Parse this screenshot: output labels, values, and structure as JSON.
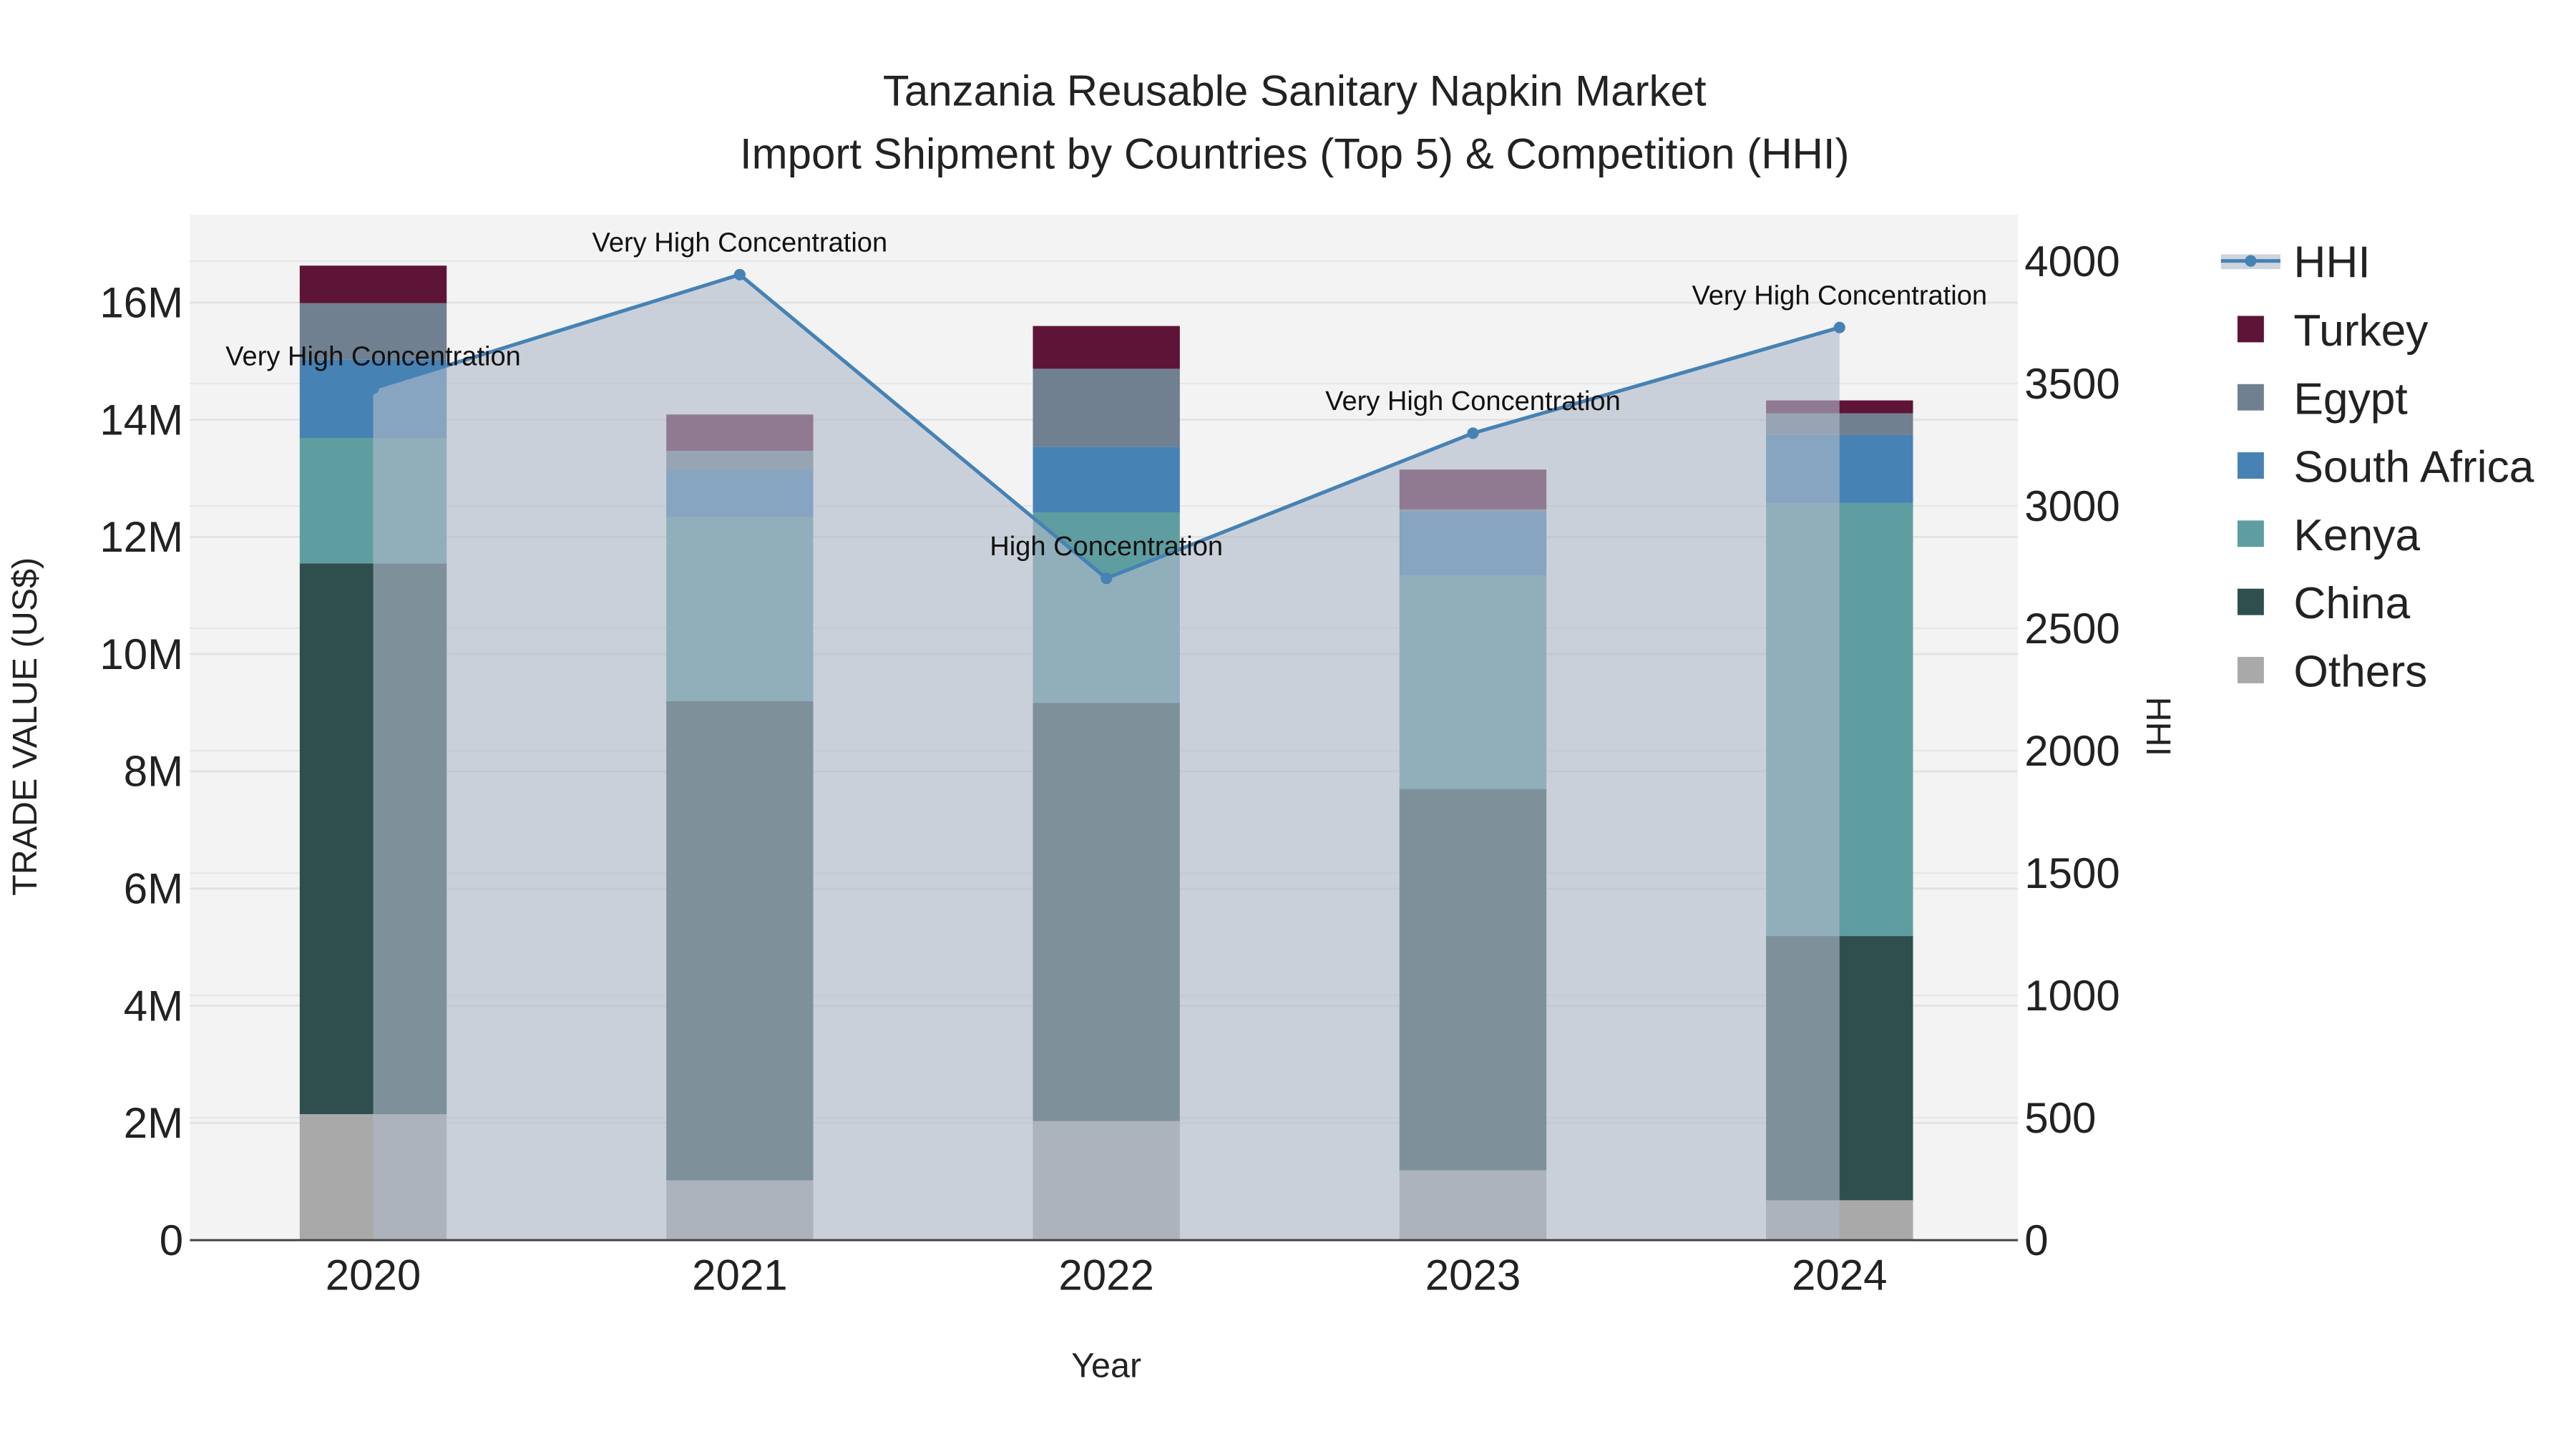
{
  "chart_data": {
    "type": "bar",
    "title": "Tanzania Reusable Sanitary Napkin Market",
    "subtitle": "Import Shipment by Countries (Top 5) & Competition (HHI)",
    "xlabel": "Year",
    "ylabel": "TRADE VALUE (US$)",
    "y2label": "HHI",
    "categories": [
      "2020",
      "2021",
      "2022",
      "2023",
      "2024"
    ],
    "ylim": [
      0,
      17500000
    ],
    "y2lim": [
      0,
      4190
    ],
    "yticks": [
      0,
      2000000,
      4000000,
      6000000,
      8000000,
      10000000,
      12000000,
      14000000,
      16000000
    ],
    "yticklabels": [
      "0",
      "2M",
      "4M",
      "6M",
      "8M",
      "10M",
      "12M",
      "14M",
      "16M"
    ],
    "y2ticks": [
      0,
      500,
      1000,
      1500,
      2000,
      2500,
      3000,
      3500,
      4000
    ],
    "y2ticklabels": [
      "0",
      "500",
      "1000",
      "1500",
      "2000",
      "2500",
      "3000",
      "3500",
      "4000"
    ],
    "grid": true,
    "legend_placement": "right",
    "series": [
      {
        "name": "Others",
        "color": "#a9a9a9",
        "values": [
          2150000,
          1020000,
          2030000,
          1190000,
          680000
        ]
      },
      {
        "name": "China",
        "color": "#2f4f4f",
        "values": [
          9400000,
          8180000,
          7140000,
          6510000,
          4510000
        ]
      },
      {
        "name": "Kenya",
        "color": "#5f9ea0",
        "values": [
          2140000,
          3140000,
          3250000,
          3640000,
          7390000
        ]
      },
      {
        "name": "South Africa",
        "color": "#4682b4",
        "values": [
          1340000,
          800000,
          1120000,
          1080000,
          1160000
        ]
      },
      {
        "name": "Egypt",
        "color": "#708090",
        "values": [
          960000,
          330000,
          1330000,
          50000,
          370000
        ]
      },
      {
        "name": "Turkey",
        "color": "#5e1436",
        "values": [
          640000,
          620000,
          730000,
          680000,
          220000
        ]
      }
    ],
    "hhi": {
      "name": "HHI",
      "color": "#4682b4",
      "values": [
        3480,
        3945,
        2704,
        3297,
        3729
      ],
      "annotations": [
        "Very High Concentration",
        "Very High Concentration",
        "High Concentration",
        "Very High Concentration",
        "Very High Concentration"
      ]
    },
    "legend_order": [
      "HHI",
      "Turkey",
      "Egypt",
      "South Africa",
      "Kenya",
      "China",
      "Others"
    ]
  }
}
